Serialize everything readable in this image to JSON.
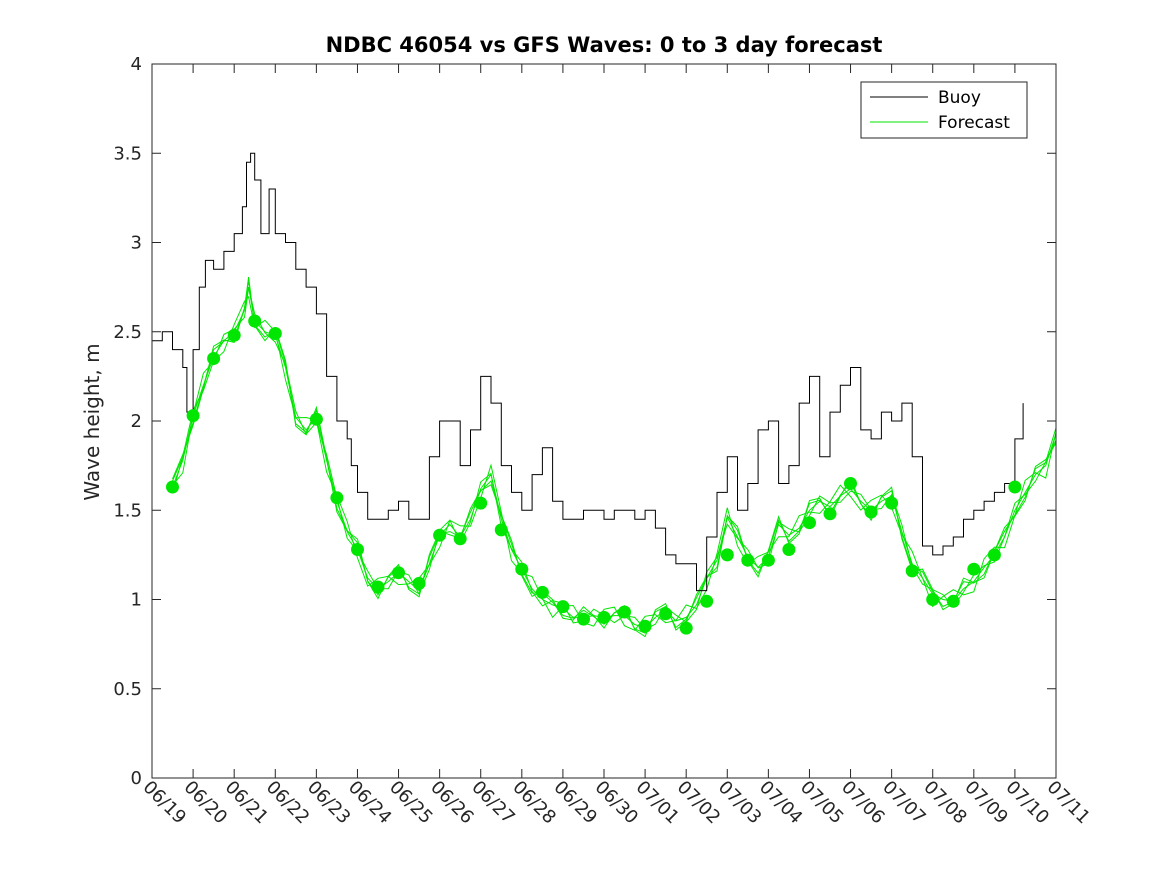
{
  "chart_data": {
    "type": "line",
    "title": "NDBC 46054 vs GFS Waves: 0 to 3 day forecast",
    "xlabel": "",
    "ylabel": "Wave height, m",
    "x_unit": "date (June–July), x = days since 06/19 00:00",
    "xlim": [
      0,
      22
    ],
    "ylim": [
      0,
      4
    ],
    "yticks": [
      0,
      0.5,
      1,
      1.5,
      2,
      2.5,
      3,
      3.5,
      4
    ],
    "yticklabels": [
      "0",
      "0.5",
      "1",
      "1.5",
      "2",
      "2.5",
      "3",
      "3.5",
      "4"
    ],
    "xticks": [
      0,
      1,
      2,
      3,
      4,
      5,
      6,
      7,
      8,
      9,
      10,
      11,
      12,
      13,
      14,
      15,
      16,
      17,
      18,
      19,
      20,
      21,
      22
    ],
    "xticklabels": [
      "06/19",
      "06/20",
      "06/21",
      "06/22",
      "06/23",
      "06/24",
      "06/25",
      "06/26",
      "06/27",
      "06/28",
      "06/29",
      "06/30",
      "07/01",
      "07/02",
      "07/03",
      "07/04",
      "07/05",
      "07/06",
      "07/07",
      "07/08",
      "07/09",
      "07/10",
      "07/11"
    ],
    "grid": false,
    "legend": {
      "placement": "top-right",
      "entries": [
        "Buoy",
        "Forecast"
      ]
    },
    "colors": {
      "buoy": "#000000",
      "forecast": "#00e600",
      "axes": "#262626"
    },
    "series": [
      {
        "name": "Buoy",
        "x": [
          0.0,
          0.25,
          0.5,
          0.75,
          0.85,
          1.0,
          1.15,
          1.3,
          1.5,
          1.75,
          2.0,
          2.2,
          2.3,
          2.4,
          2.5,
          2.65,
          2.85,
          3.0,
          3.25,
          3.5,
          3.75,
          4.0,
          4.25,
          4.5,
          4.75,
          4.85,
          5.0,
          5.25,
          5.5,
          5.75,
          6.0,
          6.25,
          6.5,
          6.75,
          7.0,
          7.25,
          7.5,
          7.75,
          8.0,
          8.25,
          8.5,
          8.75,
          9.0,
          9.25,
          9.5,
          9.75,
          10.0,
          10.25,
          10.5,
          10.75,
          11.0,
          11.25,
          11.5,
          11.75,
          12.0,
          12.25,
          12.5,
          12.75,
          13.0,
          13.25,
          13.5,
          13.75,
          14.0,
          14.25,
          14.5,
          14.75,
          15.0,
          15.25,
          15.5,
          15.75,
          16.0,
          16.25,
          16.5,
          16.75,
          17.0,
          17.25,
          17.5,
          17.75,
          18.0,
          18.25,
          18.5,
          18.75,
          19.0,
          19.25,
          19.5,
          19.75,
          20.0,
          20.25,
          20.5,
          20.75,
          21.0,
          21.2
        ],
        "y": [
          2.45,
          2.5,
          2.4,
          2.3,
          2.05,
          2.4,
          2.75,
          2.9,
          2.85,
          2.95,
          3.05,
          3.2,
          3.45,
          3.5,
          3.35,
          3.05,
          3.3,
          3.05,
          3.0,
          2.85,
          2.75,
          2.6,
          2.25,
          2.0,
          1.9,
          1.75,
          1.6,
          1.45,
          1.45,
          1.5,
          1.55,
          1.45,
          1.45,
          1.8,
          2.0,
          2.0,
          1.75,
          1.95,
          2.25,
          2.1,
          1.75,
          1.6,
          1.5,
          1.7,
          1.85,
          1.55,
          1.45,
          1.45,
          1.5,
          1.5,
          1.45,
          1.5,
          1.5,
          1.45,
          1.5,
          1.4,
          1.25,
          1.2,
          1.2,
          1.05,
          1.35,
          1.6,
          1.8,
          1.5,
          1.65,
          1.95,
          2.0,
          1.65,
          1.75,
          2.1,
          2.25,
          1.8,
          2.05,
          2.2,
          2.3,
          1.95,
          1.9,
          2.05,
          2.0,
          2.1,
          1.8,
          1.3,
          1.25,
          1.3,
          1.35,
          1.45,
          1.5,
          1.55,
          1.6,
          1.65,
          1.9,
          2.1
        ]
      },
      {
        "name": "Forecast",
        "x": [
          0.5,
          0.75,
          1.0,
          1.25,
          1.5,
          1.75,
          2.0,
          2.25,
          2.35,
          2.5,
          2.75,
          3.0,
          3.25,
          3.5,
          3.75,
          4.0,
          4.25,
          4.5,
          4.75,
          5.0,
          5.25,
          5.5,
          5.75,
          6.0,
          6.25,
          6.5,
          6.75,
          7.0,
          7.25,
          7.5,
          7.75,
          8.0,
          8.25,
          8.5,
          8.75,
          9.0,
          9.25,
          9.5,
          9.75,
          10.0,
          10.25,
          10.5,
          10.75,
          11.0,
          11.25,
          11.5,
          11.75,
          12.0,
          12.25,
          12.5,
          12.75,
          13.0,
          13.25,
          13.5,
          13.75,
          14.0,
          14.25,
          14.5,
          14.75,
          15.0,
          15.25,
          15.5,
          15.75,
          16.0,
          16.25,
          16.5,
          16.75,
          17.0,
          17.25,
          17.5,
          17.75,
          18.0,
          18.25,
          18.5,
          18.75,
          19.0,
          19.25,
          19.5,
          19.75,
          20.0,
          20.25,
          20.5,
          20.75,
          21.0,
          21.25,
          21.5,
          21.75,
          22.0
        ],
        "y": [
          1.63,
          1.78,
          2.03,
          2.2,
          2.36,
          2.45,
          2.5,
          2.62,
          2.75,
          2.56,
          2.5,
          2.48,
          2.3,
          2.02,
          1.95,
          2.02,
          1.78,
          1.55,
          1.38,
          1.28,
          1.12,
          1.06,
          1.1,
          1.15,
          1.1,
          1.05,
          1.2,
          1.36,
          1.42,
          1.35,
          1.45,
          1.62,
          1.7,
          1.45,
          1.28,
          1.17,
          1.06,
          1.0,
          0.97,
          0.95,
          0.9,
          0.9,
          0.91,
          0.9,
          0.91,
          0.91,
          0.86,
          0.84,
          0.9,
          0.94,
          0.88,
          0.9,
          0.97,
          1.12,
          1.22,
          1.46,
          1.35,
          1.24,
          1.18,
          1.24,
          1.42,
          1.36,
          1.4,
          1.5,
          1.55,
          1.52,
          1.58,
          1.62,
          1.55,
          1.5,
          1.55,
          1.58,
          1.38,
          1.2,
          1.12,
          1.03,
          1.0,
          0.99,
          1.06,
          1.1,
          1.18,
          1.25,
          1.35,
          1.5,
          1.6,
          1.7,
          1.75,
          1.93
        ]
      },
      {
        "name": "Forecast markers",
        "x": [
          0.5,
          1.0,
          1.5,
          2.0,
          2.5,
          3.0,
          4.0,
          4.5,
          5.0,
          5.5,
          6.0,
          6.5,
          7.0,
          7.5,
          8.0,
          8.5,
          9.0,
          9.5,
          10.0,
          10.5,
          11.0,
          11.5,
          12.0,
          12.5,
          13.0,
          13.5,
          14.0,
          14.5,
          15.0,
          15.5,
          16.0,
          16.5,
          17.0,
          17.5,
          18.0,
          18.5,
          19.0,
          19.5,
          20.0,
          20.5,
          21.0
        ],
        "y": [
          1.63,
          2.03,
          2.35,
          2.48,
          2.56,
          2.49,
          2.01,
          1.57,
          1.28,
          1.07,
          1.15,
          1.09,
          1.36,
          1.34,
          1.54,
          1.39,
          1.17,
          1.04,
          0.96,
          0.89,
          0.9,
          0.93,
          0.85,
          0.92,
          0.84,
          0.99,
          1.25,
          1.22,
          1.22,
          1.28,
          1.43,
          1.48,
          1.65,
          1.49,
          1.54,
          1.16,
          1.0,
          0.99,
          1.17,
          1.25,
          1.63
        ]
      }
    ]
  }
}
